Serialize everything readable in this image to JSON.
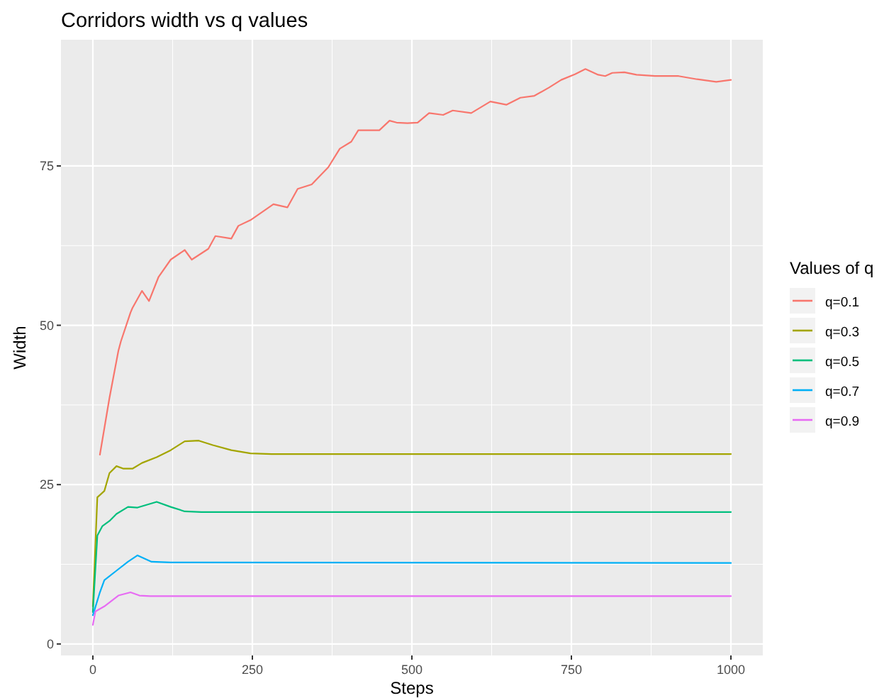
{
  "chart_data": {
    "type": "line",
    "title": "Corridors width vs q values",
    "xlabel": "Steps",
    "ylabel": "Width",
    "legend_title": "Values of q",
    "legend": "right",
    "grid": true,
    "xlim": [
      -50,
      1050
    ],
    "ylim": [
      -1.8,
      94.8
    ],
    "xticks": [
      0,
      250,
      500,
      750,
      1000
    ],
    "yticks": [
      0,
      25,
      50,
      75
    ],
    "series": [
      {
        "name": "q=0.1",
        "color": "#f8766d",
        "x": [
          11,
          26,
          40,
          44,
          59,
          62,
          77,
          88,
          103,
          122,
          144,
          155,
          181,
          192,
          217,
          228,
          247,
          283,
          305,
          321,
          343,
          369,
          387,
          405,
          416,
          449,
          465,
          476,
          493,
          509,
          527,
          549,
          564,
          593,
          623,
          648,
          670,
          692,
          715,
          734,
          756,
          772,
          792,
          803,
          814,
          833,
          852,
          881,
          918,
          947,
          977,
          1000
        ],
        "values": [
          29.7,
          38.6,
          46,
          47.5,
          52,
          52.7,
          55.4,
          53.8,
          57.6,
          60.3,
          61.8,
          60.3,
          62,
          64,
          63.6,
          65.6,
          66.5,
          69,
          68.5,
          71.4,
          72.1,
          74.8,
          77.7,
          78.8,
          80.6,
          80.6,
          82.1,
          81.8,
          81.7,
          81.8,
          83.3,
          83,
          83.7,
          83.3,
          85.1,
          84.6,
          85.7,
          86,
          87.3,
          88.5,
          89.4,
          90.2,
          89.3,
          89.1,
          89.6,
          89.7,
          89.3,
          89.1,
          89.1,
          88.6,
          88.2,
          88.5
        ]
      },
      {
        "name": "q=0.3",
        "color": "#a3a500",
        "x": [
          0,
          7,
          18,
          26,
          37,
          48,
          62,
          77,
          100,
          122,
          144,
          166,
          188,
          217,
          247,
          280,
          1000
        ],
        "values": [
          5.9,
          23,
          24,
          26.8,
          27.9,
          27.5,
          27.5,
          28.4,
          29.3,
          30.4,
          31.8,
          31.9,
          31.2,
          30.4,
          29.9,
          29.8,
          29.8
        ]
      },
      {
        "name": "q=0.5",
        "color": "#00bf7d",
        "x": [
          0,
          7,
          15,
          26,
          37,
          55,
          70,
          100,
          122,
          144,
          170,
          1000
        ],
        "values": [
          5,
          17,
          18.5,
          19.3,
          20.4,
          21.5,
          21.4,
          22.3,
          21.5,
          20.8,
          20.7,
          20.7
        ]
      },
      {
        "name": "q=0.7",
        "color": "#00b0f6",
        "x": [
          0,
          11,
          18,
          37,
          55,
          70,
          92,
          122,
          1000
        ],
        "values": [
          4.5,
          8.1,
          10,
          11.5,
          12.9,
          13.9,
          12.9,
          12.8,
          12.7
        ]
      },
      {
        "name": "q=0.9",
        "color": "#e76bf3",
        "x": [
          0,
          4,
          18,
          40,
          59,
          73,
          90,
          1000
        ],
        "values": [
          3,
          5.1,
          5.9,
          7.6,
          8.1,
          7.6,
          7.5,
          7.5
        ]
      }
    ]
  }
}
